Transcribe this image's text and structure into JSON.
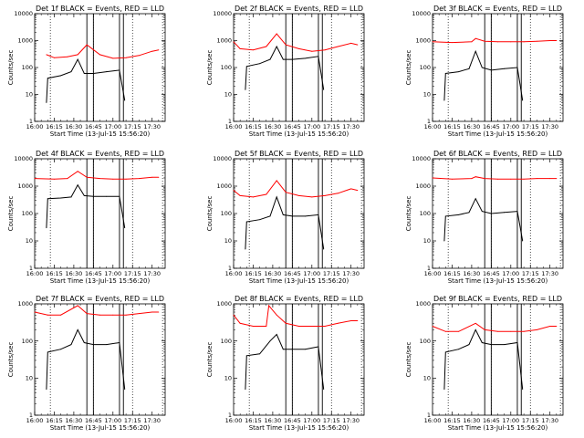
{
  "chart_data": [
    {
      "type": "line",
      "title": "Det 1f BLACK = Events, RED = LLD",
      "xlabel": "Start Time (13-Jul-15 15:56:20)",
      "ylabel": "Counts/sec",
      "x_ticks": [
        "16:00",
        "16:15",
        "16:30",
        "16:45",
        "17:00",
        "17:15",
        "17:30"
      ],
      "y_ticks": [
        "1",
        "10",
        "100",
        "1000",
        "10000"
      ],
      "yscale": "log",
      "ylim": [
        1,
        10000
      ],
      "xlim": [
        "16:00",
        "17:40"
      ],
      "vlines_dotted": [
        "16:12",
        "16:45",
        "17:15",
        "17:38"
      ],
      "vlines_solid": [
        "16:40",
        "16:45",
        "17:05",
        "17:08"
      ],
      "series": [
        {
          "color": "#ff0000",
          "x": [
            "16:09",
            "16:15",
            "16:25",
            "16:33",
            "16:40",
            "16:50",
            "17:00",
            "17:10",
            "17:20",
            "17:30",
            "17:35"
          ],
          "values": [
            300,
            230,
            250,
            300,
            700,
            300,
            220,
            230,
            280,
            400,
            450
          ]
        },
        {
          "color": "#000000",
          "x": [
            "16:09",
            "16:10",
            "16:20",
            "16:28",
            "16:33",
            "16:38",
            "16:45",
            "16:55",
            "17:05",
            "17:09"
          ],
          "values": [
            5,
            40,
            50,
            70,
            200,
            60,
            60,
            70,
            80,
            6
          ]
        }
      ]
    },
    {
      "type": "line",
      "title": "Det 2f BLACK = Events, RED = LLD",
      "xlabel": "Start Time (13-Jul-15 15:56:20)",
      "ylabel": "Counts/sec",
      "x_ticks": [
        "16:00",
        "16:15",
        "16:30",
        "16:45",
        "17:00",
        "17:15",
        "17:30"
      ],
      "y_ticks": [
        "1",
        "10",
        "100",
        "1000",
        "10000"
      ],
      "yscale": "log",
      "ylim": [
        1,
        10000
      ],
      "xlim": [
        "16:00",
        "17:40"
      ],
      "vlines_dotted": [
        "16:12",
        "16:45",
        "17:15",
        "17:38"
      ],
      "vlines_solid": [
        "16:40",
        "16:45",
        "17:05",
        "17:08"
      ],
      "series": [
        {
          "color": "#ff0000",
          "x": [
            "16:00",
            "16:05",
            "16:15",
            "16:25",
            "16:33",
            "16:40",
            "16:50",
            "17:00",
            "17:10",
            "17:20",
            "17:30",
            "17:35"
          ],
          "values": [
            900,
            500,
            450,
            600,
            1800,
            700,
            500,
            400,
            450,
            600,
            800,
            700
          ]
        },
        {
          "color": "#000000",
          "x": [
            "16:09",
            "16:10",
            "16:20",
            "16:28",
            "16:33",
            "16:38",
            "16:45",
            "16:55",
            "17:05",
            "17:09"
          ],
          "values": [
            15,
            110,
            140,
            200,
            600,
            200,
            200,
            220,
            260,
            15
          ]
        }
      ]
    },
    {
      "type": "line",
      "title": "Det 3f BLACK = Events, RED = LLD",
      "xlabel": "Start Time (13-Jul-15 15:56:20)",
      "ylabel": "Counts/sec",
      "x_ticks": [
        "16:00",
        "16:15",
        "16:30",
        "16:45",
        "17:00",
        "17:15",
        "17:30"
      ],
      "y_ticks": [
        "1",
        "10",
        "100",
        "1000",
        "10000"
      ],
      "yscale": "log",
      "ylim": [
        1,
        10000
      ],
      "xlim": [
        "16:00",
        "17:40"
      ],
      "vlines_dotted": [
        "16:12",
        "16:45",
        "17:15",
        "17:38"
      ],
      "vlines_solid": [
        "16:40",
        "16:45",
        "17:05",
        "17:08"
      ],
      "series": [
        {
          "color": "#ff0000",
          "x": [
            "16:00",
            "16:15",
            "16:30",
            "16:33",
            "16:40",
            "16:50",
            "17:00",
            "17:10",
            "17:20",
            "17:30",
            "17:35"
          ],
          "values": [
            900,
            850,
            900,
            1200,
            950,
            900,
            900,
            900,
            950,
            1000,
            1000
          ]
        },
        {
          "color": "#000000",
          "x": [
            "16:09",
            "16:10",
            "16:20",
            "16:28",
            "16:33",
            "16:38",
            "16:45",
            "16:55",
            "17:05",
            "17:09"
          ],
          "values": [
            6,
            60,
            70,
            90,
            400,
            100,
            80,
            90,
            100,
            6
          ]
        }
      ]
    },
    {
      "type": "line",
      "title": "Det 4f BLACK = Events, RED = LLD",
      "xlabel": "Start Time (13-Jul-15 15:56:20)",
      "ylabel": "Counts/sec",
      "x_ticks": [
        "16:00",
        "16:15",
        "16:30",
        "16:45",
        "17:00",
        "17:15",
        "17:30"
      ],
      "y_ticks": [
        "1",
        "10",
        "100",
        "1000",
        "10000"
      ],
      "yscale": "log",
      "ylim": [
        1,
        10000
      ],
      "xlim": [
        "16:00",
        "17:40"
      ],
      "vlines_dotted": [
        "16:12",
        "16:45",
        "17:15",
        "17:38"
      ],
      "vlines_solid": [
        "16:40",
        "16:45",
        "17:05",
        "17:08"
      ],
      "series": [
        {
          "color": "#ff0000",
          "x": [
            "16:00",
            "16:15",
            "16:25",
            "16:33",
            "16:40",
            "16:50",
            "17:00",
            "17:10",
            "17:20",
            "17:30",
            "17:35"
          ],
          "values": [
            1900,
            1800,
            1900,
            3500,
            2100,
            1900,
            1800,
            1800,
            1900,
            2100,
            2100
          ]
        },
        {
          "color": "#000000",
          "x": [
            "16:09",
            "16:10",
            "16:20",
            "16:28",
            "16:33",
            "16:38",
            "16:45",
            "16:55",
            "17:05",
            "17:09"
          ],
          "values": [
            30,
            350,
            370,
            400,
            1100,
            450,
            420,
            420,
            420,
            30
          ]
        }
      ]
    },
    {
      "type": "line",
      "title": "Det 5f BLACK = Events, RED = LLD",
      "xlabel": "Start Time (13-Jul-15 15:56:20)",
      "ylabel": "Counts/sec",
      "x_ticks": [
        "16:00",
        "16:15",
        "16:30",
        "16:45",
        "17:00",
        "17:15",
        "17:30"
      ],
      "y_ticks": [
        "1",
        "10",
        "100",
        "1000",
        "10000"
      ],
      "yscale": "log",
      "ylim": [
        1,
        10000
      ],
      "xlim": [
        "16:00",
        "17:40"
      ],
      "vlines_dotted": [
        "16:12",
        "16:45",
        "17:15",
        "17:38"
      ],
      "vlines_solid": [
        "16:40",
        "16:45",
        "17:05",
        "17:08"
      ],
      "series": [
        {
          "color": "#ff0000",
          "x": [
            "16:00",
            "16:05",
            "16:15",
            "16:25",
            "16:33",
            "16:40",
            "16:50",
            "17:00",
            "17:10",
            "17:20",
            "17:30",
            "17:35"
          ],
          "values": [
            700,
            450,
            400,
            500,
            1600,
            600,
            450,
            400,
            450,
            550,
            800,
            700
          ]
        },
        {
          "color": "#000000",
          "x": [
            "16:09",
            "16:10",
            "16:20",
            "16:28",
            "16:33",
            "16:38",
            "16:45",
            "16:55",
            "17:05",
            "17:09"
          ],
          "values": [
            5,
            50,
            60,
            80,
            400,
            90,
            80,
            80,
            90,
            5
          ]
        }
      ]
    },
    {
      "type": "line",
      "title": "Det 6f BLACK = Events, RED = LLD",
      "xlabel": "Start Time (13-Jul-15 15:56:20)",
      "ylabel": "Counts/sec",
      "x_ticks": [
        "16:00",
        "16:15",
        "16:30",
        "16:45",
        "17:00",
        "17:15",
        "17:30"
      ],
      "y_ticks": [
        "1",
        "10",
        "100",
        "1000",
        "10000"
      ],
      "yscale": "log",
      "ylim": [
        1,
        10000
      ],
      "xlim": [
        "16:00",
        "17:40"
      ],
      "vlines_dotted": [
        "16:12",
        "16:45",
        "17:15",
        "17:38"
      ],
      "vlines_solid": [
        "16:40",
        "16:45",
        "17:05",
        "17:08"
      ],
      "series": [
        {
          "color": "#ff0000",
          "x": [
            "16:00",
            "16:15",
            "16:30",
            "16:33",
            "16:40",
            "16:50",
            "17:00",
            "17:10",
            "17:20",
            "17:30",
            "17:35"
          ],
          "values": [
            2000,
            1800,
            1900,
            2200,
            1900,
            1800,
            1800,
            1800,
            1900,
            1900,
            1900
          ]
        },
        {
          "color": "#000000",
          "x": [
            "16:09",
            "16:10",
            "16:20",
            "16:28",
            "16:33",
            "16:38",
            "16:45",
            "16:55",
            "17:05",
            "17:09"
          ],
          "values": [
            10,
            80,
            90,
            110,
            350,
            120,
            100,
            110,
            120,
            10
          ]
        }
      ]
    },
    {
      "type": "line",
      "title": "Det 7f BLACK = Events, RED = LLD",
      "xlabel": "Start Time (13-Jul-15 15:56:20)",
      "ylabel": "Counts/sec",
      "x_ticks": [
        "16:00",
        "16:15",
        "16:30",
        "16:45",
        "17:00",
        "17:15",
        "17:30"
      ],
      "y_ticks": [
        "1",
        "10",
        "100",
        "1000"
      ],
      "yscale": "log",
      "ylim": [
        1,
        1000
      ],
      "xlim": [
        "16:00",
        "17:40"
      ],
      "vlines_dotted": [
        "16:12",
        "16:45",
        "17:15",
        "17:38"
      ],
      "vlines_solid": [
        "16:40",
        "16:45",
        "17:05",
        "17:08"
      ],
      "series": [
        {
          "color": "#ff0000",
          "x": [
            "16:00",
            "16:10",
            "16:20",
            "16:33",
            "16:40",
            "16:50",
            "17:00",
            "17:10",
            "17:20",
            "17:30",
            "17:35"
          ],
          "values": [
            600,
            500,
            500,
            900,
            550,
            500,
            500,
            500,
            550,
            600,
            600
          ]
        },
        {
          "color": "#000000",
          "x": [
            "16:09",
            "16:10",
            "16:20",
            "16:28",
            "16:33",
            "16:38",
            "16:45",
            "16:55",
            "17:05",
            "17:09"
          ],
          "values": [
            5,
            50,
            60,
            80,
            200,
            90,
            80,
            80,
            90,
            5
          ]
        }
      ]
    },
    {
      "type": "line",
      "title": "Det 8f BLACK = Events, RED = LLD",
      "xlabel": "Start Time (13-Jul-15 15:56:20)",
      "ylabel": "Counts/sec",
      "x_ticks": [
        "16:00",
        "16:15",
        "16:30",
        "16:45",
        "17:00",
        "17:15",
        "17:30"
      ],
      "y_ticks": [
        "1",
        "10",
        "100",
        "1000"
      ],
      "yscale": "log",
      "ylim": [
        1,
        1000
      ],
      "xlim": [
        "16:00",
        "17:40"
      ],
      "vlines_dotted": [
        "16:12",
        "16:45",
        "17:15",
        "17:38"
      ],
      "vlines_solid": [
        "16:40",
        "16:45",
        "17:05",
        "17:08"
      ],
      "series": [
        {
          "color": "#ff0000",
          "x": [
            "16:00",
            "16:05",
            "16:15",
            "16:25",
            "16:27",
            "16:33",
            "16:40",
            "16:50",
            "17:00",
            "17:10",
            "17:20",
            "17:30",
            "17:35"
          ],
          "values": [
            500,
            300,
            250,
            250,
            900,
            500,
            300,
            250,
            250,
            250,
            300,
            350,
            350
          ]
        },
        {
          "color": "#000000",
          "x": [
            "16:09",
            "16:10",
            "16:20",
            "16:28",
            "16:33",
            "16:38",
            "16:45",
            "16:55",
            "17:05",
            "17:09"
          ],
          "values": [
            5,
            40,
            45,
            100,
            150,
            60,
            60,
            60,
            70,
            5
          ]
        }
      ]
    },
    {
      "type": "line",
      "title": "Det 9f BLACK = Events, RED = LLD",
      "xlabel": "Start Time (13-Jul-15 15:56:20)",
      "ylabel": "Counts/sec",
      "x_ticks": [
        "16:00",
        "16:15",
        "16:30",
        "16:45",
        "17:00",
        "17:15",
        "17:30"
      ],
      "y_ticks": [
        "1",
        "10",
        "100",
        "1000"
      ],
      "yscale": "log",
      "ylim": [
        1,
        1000
      ],
      "xlim": [
        "16:00",
        "17:40"
      ],
      "vlines_dotted": [
        "16:12",
        "16:45",
        "17:15",
        "17:38"
      ],
      "vlines_solid": [
        "16:40",
        "16:45",
        "17:05",
        "17:08"
      ],
      "series": [
        {
          "color": "#ff0000",
          "x": [
            "16:00",
            "16:10",
            "16:20",
            "16:33",
            "16:40",
            "16:50",
            "17:00",
            "17:10",
            "17:20",
            "17:30",
            "17:35"
          ],
          "values": [
            250,
            180,
            180,
            300,
            200,
            180,
            180,
            180,
            200,
            250,
            250
          ]
        },
        {
          "color": "#000000",
          "x": [
            "16:09",
            "16:10",
            "16:20",
            "16:28",
            "16:33",
            "16:38",
            "16:45",
            "16:55",
            "17:05",
            "17:09"
          ],
          "values": [
            5,
            50,
            60,
            80,
            200,
            90,
            80,
            80,
            90,
            5
          ]
        }
      ]
    }
  ]
}
